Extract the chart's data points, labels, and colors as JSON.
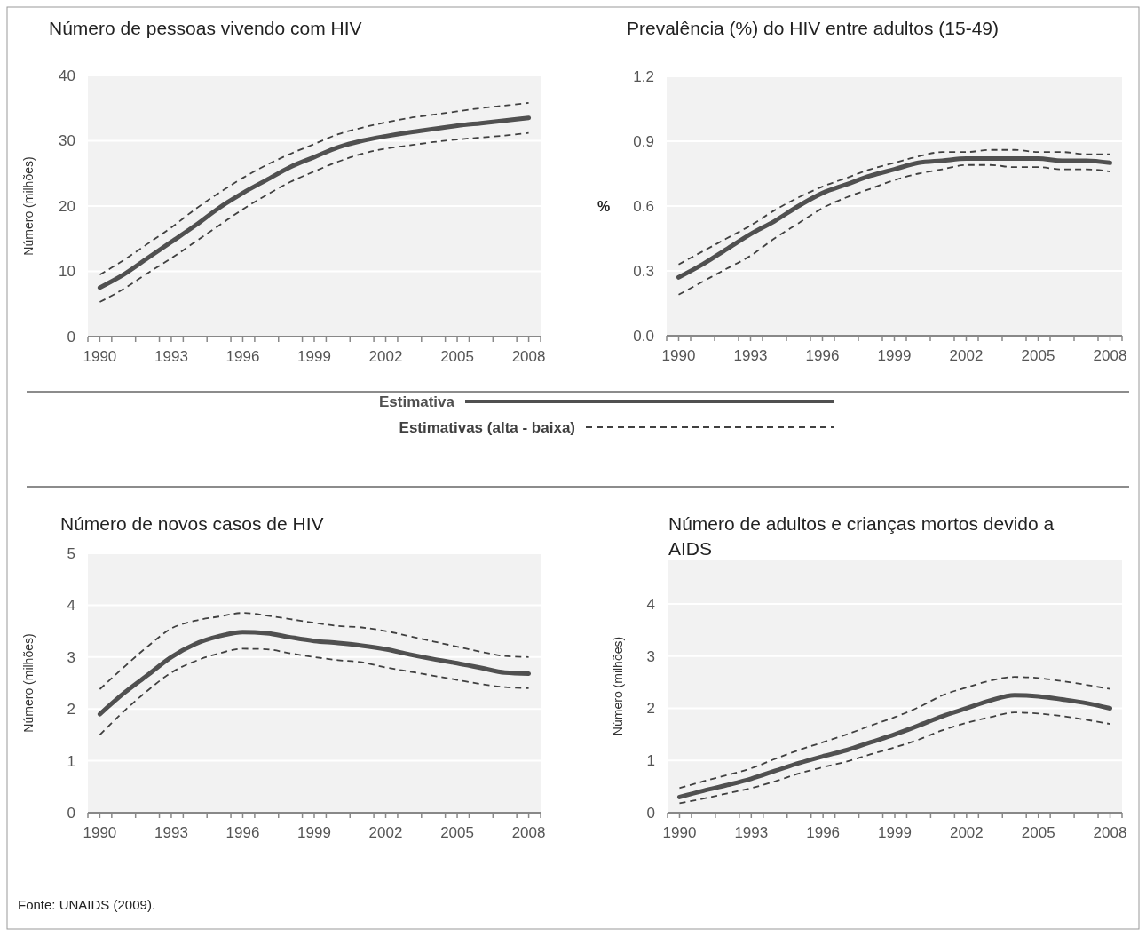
{
  "chart_data": [
    {
      "type": "line",
      "title": "Número de pessoas vivendo com HIV",
      "ylabel": "Número (milhões)",
      "x": [
        1990,
        1991,
        1992,
        1993,
        1994,
        1995,
        1996,
        1997,
        1998,
        1999,
        2000,
        2001,
        2002,
        2003,
        2004,
        2005,
        2006,
        2007,
        2008
      ],
      "xlim": [
        1989.5,
        2008.5
      ],
      "xticks": [
        1990,
        1993,
        1996,
        1999,
        2002,
        2005,
        2008,
        {
          "value": 1989.5,
          "label": null
        },
        {
          "value": 1990.5,
          "label": null
        },
        {
          "value": 1991.5,
          "label": null
        },
        {
          "value": 1992.5,
          "label": null
        },
        {
          "value": 1993.5,
          "label": null
        },
        {
          "value": 1994.5,
          "label": null
        },
        {
          "value": 1995.5,
          "label": null
        },
        {
          "value": 1996.5,
          "label": null
        },
        {
          "value": 1997.5,
          "label": null
        },
        {
          "value": 1998.5,
          "label": null
        },
        {
          "value": 1999.5,
          "label": null
        },
        {
          "value": 2000.5,
          "label": null
        },
        {
          "value": 2001.5,
          "label": null
        },
        {
          "value": 2002.5,
          "label": null
        },
        {
          "value": 2003.5,
          "label": null
        },
        {
          "value": 2004.5,
          "label": null
        },
        {
          "value": 2005.5,
          "label": null
        },
        {
          "value": 2006.5,
          "label": null
        },
        {
          "value": 2007.5,
          "label": null
        },
        {
          "value": 2008.5,
          "label": null
        }
      ],
      "ylim": [
        0,
        40
      ],
      "yticks": [
        0,
        10,
        20,
        30,
        40
      ],
      "grid": "y",
      "legend": "bottom",
      "annotations": [
        "Fonte: UNAIDS (2009)."
      ],
      "series": [
        {
          "name": "Estimativa",
          "color": "#505050",
          "line_style": "solid",
          "values": [
            7.5,
            9.5,
            12,
            14.5,
            17,
            19.7,
            22,
            24,
            26,
            27.5,
            29,
            30,
            30.7,
            31.3,
            31.8,
            32.3,
            32.7,
            33.1,
            33.5
          ]
        },
        {
          "name": "Estimativas (alta - baixa)",
          "color": "#404040",
          "line_style": "dashed",
          "values": [
            9.5,
            11.7,
            14.2,
            16.7,
            19.5,
            22,
            24.3,
            26.3,
            28,
            29.5,
            31,
            32,
            32.8,
            33.5,
            34,
            34.5,
            35,
            35.4,
            35.8
          ]
        },
        {
          "color": "#404040",
          "line_style": "dashed",
          "values": [
            5.3,
            7.3,
            9.7,
            12,
            14.5,
            17,
            19.5,
            21.7,
            23.7,
            25.3,
            26.8,
            28,
            28.8,
            29.3,
            29.8,
            30.2,
            30.5,
            30.8,
            31.2
          ]
        }
      ]
    },
    {
      "type": "line",
      "title": "Prevalência (%) do HIV entre adultos (15-49)",
      "ylabel": "%",
      "x": [
        1990,
        1991,
        1992,
        1993,
        1994,
        1995,
        1996,
        1997,
        1998,
        1999,
        2000,
        2001,
        2002,
        2003,
        2004,
        2005,
        2006,
        2007,
        2008
      ],
      "xlim": [
        1989.5,
        2008.5
      ],
      "xticks": [
        1990,
        1993,
        1996,
        1999,
        2002,
        2005,
        2008,
        {
          "value": 1989.5,
          "label": null
        },
        {
          "value": 1990.5,
          "label": null
        },
        {
          "value": 1991.5,
          "label": null
        },
        {
          "value": 1992.5,
          "label": null
        },
        {
          "value": 1993.5,
          "label": null
        },
        {
          "value": 1994.5,
          "label": null
        },
        {
          "value": 1995.5,
          "label": null
        },
        {
          "value": 1996.5,
          "label": null
        },
        {
          "value": 1997.5,
          "label": null
        },
        {
          "value": 1998.5,
          "label": null
        },
        {
          "value": 1999.5,
          "label": null
        },
        {
          "value": 2000.5,
          "label": null
        },
        {
          "value": 2001.5,
          "label": null
        },
        {
          "value": 2002.5,
          "label": null
        },
        {
          "value": 2003.5,
          "label": null
        },
        {
          "value": 2004.5,
          "label": null
        },
        {
          "value": 2005.5,
          "label": null
        },
        {
          "value": 2006.5,
          "label": null
        },
        {
          "value": 2007.5,
          "label": null
        },
        {
          "value": 2008.5,
          "label": null
        }
      ],
      "ylim": [
        0,
        1.2
      ],
      "yticks": [
        {
          "value": 0,
          "label": "0.0"
        },
        0.3,
        0.6,
        0.9,
        1.2
      ],
      "grid": "y",
      "series": [
        {
          "color": "#505050",
          "line_style": "solid",
          "values": [
            0.27,
            0.33,
            0.4,
            0.47,
            0.53,
            0.6,
            0.66,
            0.7,
            0.74,
            0.77,
            0.8,
            0.81,
            0.82,
            0.82,
            0.82,
            0.82,
            0.81,
            0.81,
            0.8
          ]
        },
        {
          "color": "#404040",
          "line_style": "dashed",
          "values": [
            0.33,
            0.39,
            0.45,
            0.51,
            0.58,
            0.64,
            0.69,
            0.73,
            0.77,
            0.8,
            0.83,
            0.85,
            0.85,
            0.86,
            0.86,
            0.85,
            0.85,
            0.84,
            0.84
          ]
        },
        {
          "color": "#404040",
          "line_style": "dashed",
          "values": [
            0.19,
            0.25,
            0.31,
            0.37,
            0.45,
            0.52,
            0.59,
            0.64,
            0.68,
            0.72,
            0.75,
            0.77,
            0.79,
            0.79,
            0.78,
            0.78,
            0.77,
            0.77,
            0.76
          ]
        }
      ]
    },
    {
      "type": "line",
      "title": "Número de novos casos de HIV",
      "ylabel": "Número (milhões)",
      "x": [
        1990,
        1991,
        1992,
        1993,
        1994,
        1995,
        1996,
        1997,
        1998,
        1999,
        2000,
        2001,
        2002,
        2003,
        2004,
        2005,
        2006,
        2007,
        2008
      ],
      "xlim": [
        1989.5,
        2008.5
      ],
      "xticks": [
        1990,
        1993,
        1996,
        1999,
        2002,
        2005,
        2008,
        {
          "value": 1989.5,
          "label": null
        },
        {
          "value": 1990.5,
          "label": null
        },
        {
          "value": 1991.5,
          "label": null
        },
        {
          "value": 1992.5,
          "label": null
        },
        {
          "value": 1993.5,
          "label": null
        },
        {
          "value": 1994.5,
          "label": null
        },
        {
          "value": 1995.5,
          "label": null
        },
        {
          "value": 1996.5,
          "label": null
        },
        {
          "value": 1997.5,
          "label": null
        },
        {
          "value": 1998.5,
          "label": null
        },
        {
          "value": 1999.5,
          "label": null
        },
        {
          "value": 2000.5,
          "label": null
        },
        {
          "value": 2001.5,
          "label": null
        },
        {
          "value": 2002.5,
          "label": null
        },
        {
          "value": 2003.5,
          "label": null
        },
        {
          "value": 2004.5,
          "label": null
        },
        {
          "value": 2005.5,
          "label": null
        },
        {
          "value": 2006.5,
          "label": null
        },
        {
          "value": 2007.5,
          "label": null
        },
        {
          "value": 2008.5,
          "label": null
        }
      ],
      "ylim": [
        0,
        5
      ],
      "yticks": [
        0,
        1,
        2,
        3,
        4,
        5
      ],
      "grid": "y",
      "series": [
        {
          "color": "#505050",
          "line_style": "solid",
          "values": [
            1.9,
            2.3,
            2.65,
            3,
            3.25,
            3.4,
            3.48,
            3.46,
            3.38,
            3.31,
            3.27,
            3.22,
            3.15,
            3.05,
            2.96,
            2.88,
            2.79,
            2.7,
            2.68
          ]
        },
        {
          "color": "#404040",
          "line_style": "dashed",
          "values": [
            2.38,
            2.8,
            3.2,
            3.55,
            3.7,
            3.78,
            3.85,
            3.8,
            3.73,
            3.66,
            3.6,
            3.57,
            3.5,
            3.4,
            3.3,
            3.2,
            3.1,
            3.02,
            3
          ]
        },
        {
          "color": "#404040",
          "line_style": "dashed",
          "values": [
            1.5,
            1.95,
            2.35,
            2.7,
            2.92,
            3.07,
            3.16,
            3.15,
            3.07,
            3,
            2.94,
            2.9,
            2.8,
            2.72,
            2.64,
            2.56,
            2.48,
            2.42,
            2.4
          ]
        }
      ]
    },
    {
      "type": "line",
      "title": "Número de adultos e crianças mortos devido a AIDS",
      "ylabel": "Número (milhões)",
      "x": [
        1990,
        1991,
        1992,
        1993,
        1994,
        1995,
        1996,
        1997,
        1998,
        1999,
        2000,
        2001,
        2002,
        2003,
        2004,
        2005,
        2006,
        2007,
        2008
      ],
      "xlim": [
        1989.5,
        2008.5
      ],
      "xticks": [
        1990,
        1993,
        1996,
        1999,
        2002,
        2005,
        2008,
        {
          "value": 1989.5,
          "label": null
        },
        {
          "value": 1990.5,
          "label": null
        },
        {
          "value": 1991.5,
          "label": null
        },
        {
          "value": 1992.5,
          "label": null
        },
        {
          "value": 1993.5,
          "label": null
        },
        {
          "value": 1994.5,
          "label": null
        },
        {
          "value": 1995.5,
          "label": null
        },
        {
          "value": 1996.5,
          "label": null
        },
        {
          "value": 1997.5,
          "label": null
        },
        {
          "value": 1998.5,
          "label": null
        },
        {
          "value": 1999.5,
          "label": null
        },
        {
          "value": 2000.5,
          "label": null
        },
        {
          "value": 2001.5,
          "label": null
        },
        {
          "value": 2002.5,
          "label": null
        },
        {
          "value": 2003.5,
          "label": null
        },
        {
          "value": 2004.5,
          "label": null
        },
        {
          "value": 2005.5,
          "label": null
        },
        {
          "value": 2006.5,
          "label": null
        },
        {
          "value": 2007.5,
          "label": null
        },
        {
          "value": 2008.5,
          "label": null
        }
      ],
      "ylim": [
        0,
        4.85
      ],
      "yticks": [
        0,
        1,
        2,
        3,
        4
      ],
      "grid": "y",
      "series": [
        {
          "color": "#505050",
          "line_style": "solid",
          "values": [
            0.3,
            0.42,
            0.53,
            0.65,
            0.8,
            0.95,
            1.08,
            1.2,
            1.35,
            1.5,
            1.67,
            1.85,
            2,
            2.15,
            2.25,
            2.23,
            2.17,
            2.1,
            2
          ]
        },
        {
          "color": "#404040",
          "line_style": "dashed",
          "values": [
            0.47,
            0.6,
            0.72,
            0.85,
            1.03,
            1.2,
            1.35,
            1.5,
            1.67,
            1.83,
            2.02,
            2.25,
            2.4,
            2.53,
            2.6,
            2.58,
            2.52,
            2.45,
            2.37
          ]
        },
        {
          "color": "#404040",
          "line_style": "dashed",
          "values": [
            0.18,
            0.27,
            0.37,
            0.47,
            0.6,
            0.75,
            0.87,
            0.98,
            1.12,
            1.25,
            1.4,
            1.58,
            1.72,
            1.83,
            1.92,
            1.9,
            1.85,
            1.78,
            1.7
          ]
        }
      ]
    }
  ]
}
